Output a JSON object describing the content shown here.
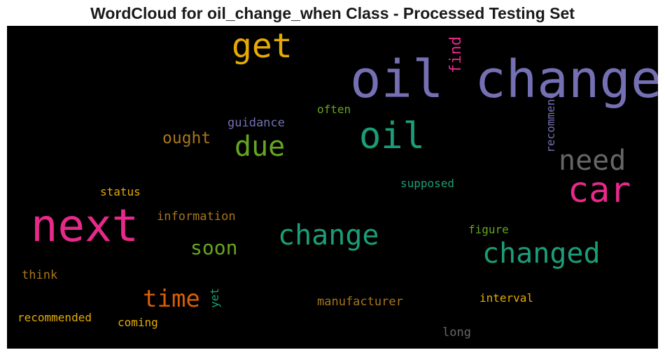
{
  "chart_data": {
    "type": "wordcloud",
    "title": "WordCloud for oil_change_when Class - Processed Testing Set",
    "background": "#000000",
    "words": [
      {
        "text": "oil change",
        "color": "#7570b3"
      },
      {
        "text": "next",
        "color": "#e7298a"
      },
      {
        "text": "get",
        "color": "#e6ab02"
      },
      {
        "text": "oil",
        "color": "#1b9e77"
      },
      {
        "text": "car",
        "color": "#e7298a"
      },
      {
        "text": "due",
        "color": "#66a61e"
      },
      {
        "text": "need",
        "color": "#666666"
      },
      {
        "text": "change",
        "color": "#1b9e77"
      },
      {
        "text": "changed",
        "color": "#1b9e77"
      },
      {
        "text": "time",
        "color": "#d95f02"
      },
      {
        "text": "soon",
        "color": "#66a61e"
      },
      {
        "text": "find",
        "color": "#e7298a"
      },
      {
        "text": "ought",
        "color": "#a6761d"
      },
      {
        "text": "recommend",
        "color": "#7570b3"
      },
      {
        "text": "guidance",
        "color": "#7570b3"
      },
      {
        "text": "often",
        "color": "#66a61e"
      },
      {
        "text": "supposed",
        "color": "#1b9e77"
      },
      {
        "text": "status",
        "color": "#e6ab02"
      },
      {
        "text": "information",
        "color": "#a6761d"
      },
      {
        "text": "figure",
        "color": "#66a61e"
      },
      {
        "text": "think",
        "color": "#a6761d"
      },
      {
        "text": "yet",
        "color": "#1b9e77"
      },
      {
        "text": "manufacturer",
        "color": "#a6761d"
      },
      {
        "text": "interval",
        "color": "#e6ab02"
      },
      {
        "text": "recommended",
        "color": "#e6ab02"
      },
      {
        "text": "coming",
        "color": "#e6ab02"
      },
      {
        "text": "long",
        "color": "#666666"
      }
    ]
  }
}
